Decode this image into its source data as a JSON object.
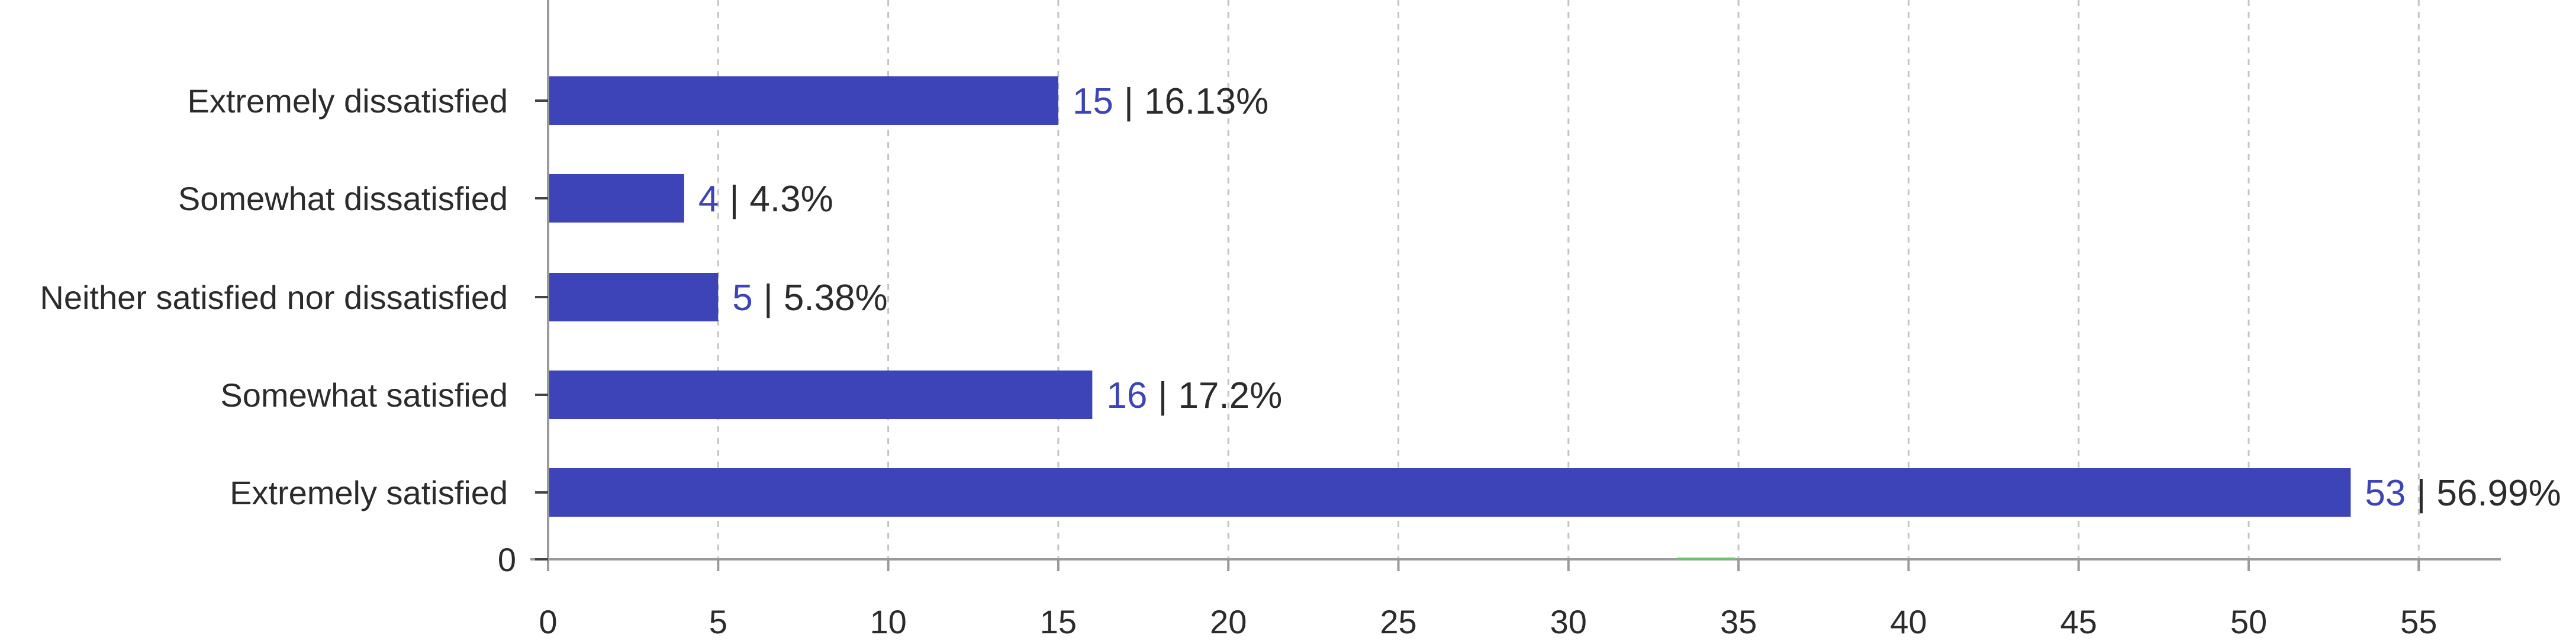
{
  "chart_data": {
    "type": "bar",
    "orientation": "horizontal",
    "categories": [
      "Extremely dissatisfied",
      "Somewhat dissatisfied",
      "Neither satisfied nor dissatisfied",
      "Somewhat satisfied",
      "Extremely satisfied"
    ],
    "values": [
      15,
      4,
      5,
      16,
      53
    ],
    "percent_labels": [
      "16.13%",
      "4.3%",
      "5.38%",
      "17.2%",
      "56.99%"
    ],
    "separator": "|",
    "extra_y_tick": "0",
    "xlim": [
      0,
      57.5
    ],
    "x_ticks": [
      0,
      5,
      10,
      15,
      20,
      25,
      30,
      35,
      40,
      45,
      50,
      55
    ],
    "grid": "vertical-dashed",
    "title": "",
    "xlabel": "",
    "ylabel": ""
  },
  "colors": {
    "bar": "#3c44b8",
    "count_text": "#3c44b8",
    "text": "#2b2b2b",
    "axis": "#9a9a9a",
    "grid": "#c4c4c4",
    "marker": "#6cc16c"
  }
}
